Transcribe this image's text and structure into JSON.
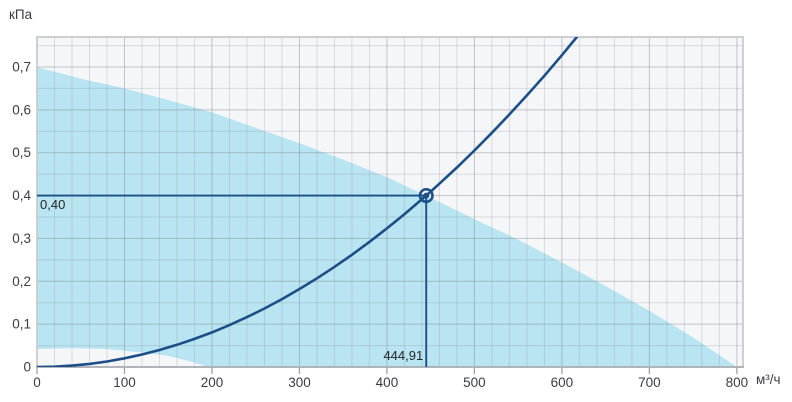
{
  "axes": {
    "y_unit": "кПа",
    "x_unit": "м³/ч"
  },
  "colors": {
    "page_bg": "#ffffff",
    "plot_bg": "#f5f6f8",
    "region_fill": "#b9e4f1",
    "curve": "#1c4e87",
    "crosshair": "#1c4e87",
    "grid_minor": "rgba(140,146,155,0.28)",
    "grid_major": "rgba(120,127,136,0.42)",
    "border": "#c9cbce",
    "axis_line": "#a6a9ad",
    "tick": "#9ea1a5",
    "tick_text": "#3b3d40",
    "point_label_text": "#242527"
  },
  "chart_data": {
    "type": "area",
    "xlabel": "м³/ч",
    "ylabel": "кПа",
    "xlim": [
      0,
      807
    ],
    "ylim": [
      0,
      0.77
    ],
    "x_minor_step": 20,
    "y_minor_step": 0.05,
    "grid": true,
    "legend": null,
    "x_ticks": [
      {
        "v": 0,
        "label": "0"
      },
      {
        "v": 100,
        "label": "100"
      },
      {
        "v": 200,
        "label": "200"
      },
      {
        "v": 300,
        "label": "300"
      },
      {
        "v": 400,
        "label": "400"
      },
      {
        "v": 500,
        "label": "500"
      },
      {
        "v": 600,
        "label": "600"
      },
      {
        "v": 700,
        "label": "700"
      },
      {
        "v": 800,
        "label": "800"
      }
    ],
    "y_ticks": [
      {
        "v": 0,
        "label": "0"
      },
      {
        "v": 0.1,
        "label": "0,1"
      },
      {
        "v": 0.2,
        "label": "0,2"
      },
      {
        "v": 0.3,
        "label": "0,3"
      },
      {
        "v": 0.4,
        "label": "0,4"
      },
      {
        "v": 0.5,
        "label": "0,5"
      },
      {
        "v": 0.6,
        "label": "0,6"
      },
      {
        "v": 0.7,
        "label": "0,7"
      }
    ],
    "series": [
      {
        "name": "fan-operating-region",
        "type": "area",
        "upper_boundary": [
          [
            0,
            0.7
          ],
          [
            50,
            0.673
          ],
          [
            100,
            0.65
          ],
          [
            150,
            0.623
          ],
          [
            200,
            0.594
          ],
          [
            250,
            0.558
          ],
          [
            300,
            0.522
          ],
          [
            350,
            0.484
          ],
          [
            400,
            0.443
          ],
          [
            444.91,
            0.4
          ],
          [
            500,
            0.345
          ],
          [
            550,
            0.297
          ],
          [
            600,
            0.244
          ],
          [
            650,
            0.189
          ],
          [
            700,
            0.131
          ],
          [
            750,
            0.069
          ],
          [
            800,
            0
          ]
        ],
        "lower_boundary": [
          [
            0,
            0.042
          ],
          [
            40,
            0.044
          ],
          [
            80,
            0.042
          ],
          [
            120,
            0.034
          ],
          [
            150,
            0.026
          ],
          [
            175,
            0.013
          ],
          [
            195,
            0
          ],
          [
            800,
            0
          ]
        ]
      },
      {
        "name": "system-resistance-curve",
        "type": "line",
        "points": [
          [
            0,
            0
          ],
          [
            20,
            0.0008
          ],
          [
            40,
            0.0032
          ],
          [
            60,
            0.0073
          ],
          [
            80,
            0.0129
          ],
          [
            100,
            0.0202
          ],
          [
            120,
            0.0291
          ],
          [
            140,
            0.0396
          ],
          [
            160,
            0.0517
          ],
          [
            180,
            0.0655
          ],
          [
            200,
            0.0808
          ],
          [
            220,
            0.0978
          ],
          [
            240,
            0.1164
          ],
          [
            260,
            0.1366
          ],
          [
            280,
            0.1584
          ],
          [
            300,
            0.1819
          ],
          [
            320,
            0.2069
          ],
          [
            340,
            0.2336
          ],
          [
            360,
            0.2619
          ],
          [
            380,
            0.2918
          ],
          [
            400,
            0.3233
          ],
          [
            420,
            0.3565
          ],
          [
            440,
            0.3912
          ],
          [
            444.91,
            0.4
          ],
          [
            460,
            0.4276
          ],
          [
            480,
            0.4656
          ],
          [
            500,
            0.5052
          ],
          [
            520,
            0.5464
          ],
          [
            540,
            0.5893
          ],
          [
            560,
            0.6337
          ],
          [
            580,
            0.6798
          ],
          [
            600,
            0.7275
          ],
          [
            617,
            0.77
          ]
        ]
      }
    ],
    "operating_point": {
      "x": 444.91,
      "y": 0.4,
      "x_label": "444,91",
      "y_label": "0,40",
      "marker": "ring-dot"
    }
  }
}
